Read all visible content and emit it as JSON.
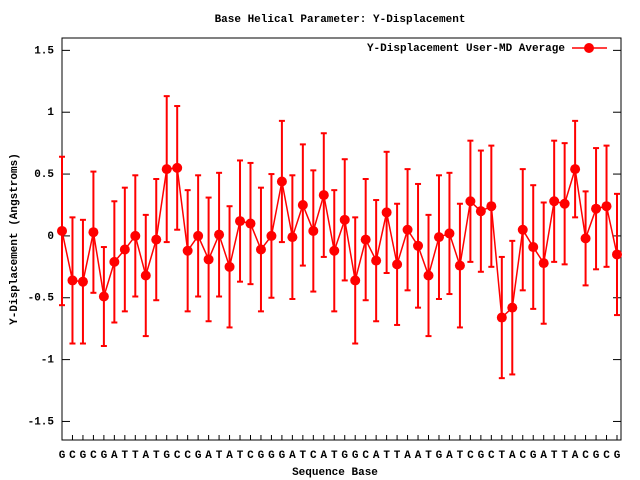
{
  "chart_data": {
    "type": "errorline",
    "title": "Base  Helical Parameter: Y-Displacement",
    "xlabel": "Sequence Base",
    "ylabel": "Y-Displacement (Angstroms)",
    "categories": [
      "G",
      "C",
      "G",
      "C",
      "G",
      "A",
      "T",
      "T",
      "A",
      "T",
      "G",
      "C",
      "C",
      "G",
      "A",
      "T",
      "A",
      "T",
      "C",
      "G",
      "G",
      "G",
      "A",
      "T",
      "C",
      "A",
      "T",
      "G",
      "G",
      "C",
      "A",
      "T",
      "T",
      "A",
      "A",
      "T",
      "G",
      "A",
      "T",
      "C",
      "G",
      "C",
      "T",
      "A",
      "C",
      "G",
      "A",
      "T",
      "T",
      "A",
      "C",
      "G",
      "C",
      "G"
    ],
    "series": [
      {
        "name": "Y-Displacement User-MD Average",
        "color": "#ff0000",
        "values": [
          0.04,
          -0.36,
          -0.37,
          0.03,
          -0.49,
          -0.21,
          -0.11,
          0.0,
          -0.32,
          -0.03,
          0.54,
          0.55,
          -0.12,
          0.0,
          -0.19,
          0.01,
          -0.25,
          0.12,
          0.1,
          -0.11,
          0.0,
          0.44,
          -0.01,
          0.25,
          0.04,
          0.33,
          -0.12,
          0.13,
          -0.36,
          -0.03,
          -0.2,
          0.19,
          -0.23,
          0.05,
          -0.08,
          -0.32,
          -0.01,
          0.02,
          -0.24,
          0.28,
          0.2,
          0.24,
          -0.66,
          -0.58,
          0.05,
          -0.09,
          -0.22,
          0.28,
          0.26,
          0.54,
          -0.02,
          0.22,
          0.24,
          -0.15
        ],
        "errors": [
          0.6,
          0.51,
          0.5,
          0.49,
          0.4,
          0.49,
          0.5,
          0.49,
          0.49,
          0.49,
          0.59,
          0.5,
          0.49,
          0.49,
          0.5,
          0.5,
          0.49,
          0.49,
          0.49,
          0.5,
          0.5,
          0.49,
          0.5,
          0.49,
          0.49,
          0.5,
          0.49,
          0.49,
          0.51,
          0.49,
          0.49,
          0.49,
          0.49,
          0.49,
          0.5,
          0.49,
          0.5,
          0.49,
          0.5,
          0.49,
          0.49,
          0.49,
          0.49,
          0.54,
          0.49,
          0.5,
          0.49,
          0.49,
          0.49,
          0.39,
          0.38,
          0.49,
          0.49,
          0.49
        ]
      }
    ],
    "ylim": [
      -1.65,
      1.6
    ],
    "yticks": [
      -1.5,
      -1,
      -0.5,
      0,
      0.5,
      1,
      1.5
    ],
    "legend": "upper right"
  }
}
